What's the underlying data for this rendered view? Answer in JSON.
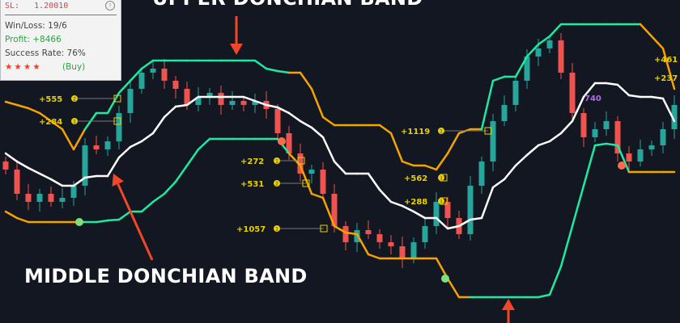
{
  "panel": {
    "sl_label": "SL:",
    "sl_value": "1.20010",
    "win_loss": "Win/Loss: 19/6",
    "profit": "Profit: +8466",
    "success_rate": "Success Rate: 76%",
    "stars": "★★★★",
    "signal": "(Buy)"
  },
  "annotations": {
    "upper_band": "UPPER DONCHIAN BAND",
    "middle_band": "MIDDLE DONCHIAN BAND"
  },
  "trade_labels": [
    "+555",
    "+284",
    "+272",
    "+531",
    "+1057",
    "+1119",
    "+562",
    "+288",
    "+461",
    "+237",
    "740"
  ],
  "trade_markers": [
    "2",
    "1",
    "1",
    "2",
    "1",
    "1",
    "1",
    "1"
  ],
  "colors": {
    "bull": "#26a69a",
    "bear": "#ef5350",
    "band_up": "#1de9a0",
    "band_down": "#f5a300",
    "middle": "#ffffff",
    "arrow": "#f0472a",
    "label": "#e8d000",
    "label_alt": "#b66be0"
  },
  "chart_data": {
    "type": "candlestick",
    "title": "",
    "xlabel": "",
    "ylabel": "",
    "axes_visible": false,
    "grid": false,
    "first_open": 200,
    "close": [
      190,
      160,
      150,
      160,
      150,
      155,
      170,
      220,
      215,
      225,
      260,
      290,
      310,
      315,
      300,
      290,
      270,
      280,
      285,
      270,
      275,
      270,
      275,
      265,
      235,
      210,
      185,
      190,
      160,
      120,
      100,
      115,
      110,
      100,
      95,
      80,
      100,
      120,
      150,
      130,
      110,
      170,
      200,
      250,
      270,
      300,
      330,
      340,
      350,
      310,
      260,
      230,
      240,
      250,
      210,
      200,
      215,
      220,
      240,
      270
    ],
    "bands": {
      "upper": [
        274,
        270,
        266,
        260,
        250,
        240,
        215,
        240,
        260,
        260,
        285,
        300,
        315,
        325,
        325,
        325,
        325,
        325,
        325,
        325,
        325,
        325,
        325,
        315,
        312,
        310,
        310,
        290,
        255,
        245,
        245,
        245,
        245,
        245,
        235,
        200,
        195,
        195,
        190,
        210,
        235,
        240,
        240,
        300,
        305,
        305,
        330,
        345,
        355,
        370,
        370,
        370,
        370,
        370,
        370,
        370,
        370,
        355,
        340,
        290
      ],
      "upper_trend": "ddddddduuuuuuuuuuuuuuuuuuddddddddddddddddduuuuuuuuuuuuuuddd",
      "middle": [
        210,
        200,
        192,
        185,
        178,
        170,
        170,
        180,
        182,
        182,
        205,
        218,
        225,
        235,
        255,
        268,
        270,
        280,
        280,
        280,
        280,
        280,
        275,
        270,
        267,
        260,
        250,
        242,
        230,
        200,
        185,
        185,
        185,
        165,
        150,
        145,
        138,
        130,
        130,
        117,
        120,
        128,
        130,
        168,
        178,
        195,
        208,
        220,
        225,
        235,
        250,
        280,
        297,
        297,
        295,
        282,
        280,
        280,
        278,
        250
      ],
      "lower": [
        138,
        130,
        125,
        125,
        125,
        125,
        125,
        125,
        125,
        127,
        128,
        138,
        138,
        150,
        160,
        175,
        195,
        215,
        228,
        228,
        228,
        228,
        228,
        228,
        228,
        210,
        195,
        160,
        155,
        120,
        112,
        110,
        85,
        80,
        80,
        80,
        80,
        80,
        80,
        55,
        32,
        32,
        32,
        32,
        32,
        32,
        32,
        32,
        35,
        70,
        120,
        170,
        220,
        222,
        220,
        187,
        187,
        187,
        187,
        187
      ],
      "lower_trend": "ddddddduuuuuuuuuuuuuuuuuudddddddddddddddduuuuuuuuuuuuuuddddd"
    },
    "ylim": [
      0,
      400
    ]
  }
}
